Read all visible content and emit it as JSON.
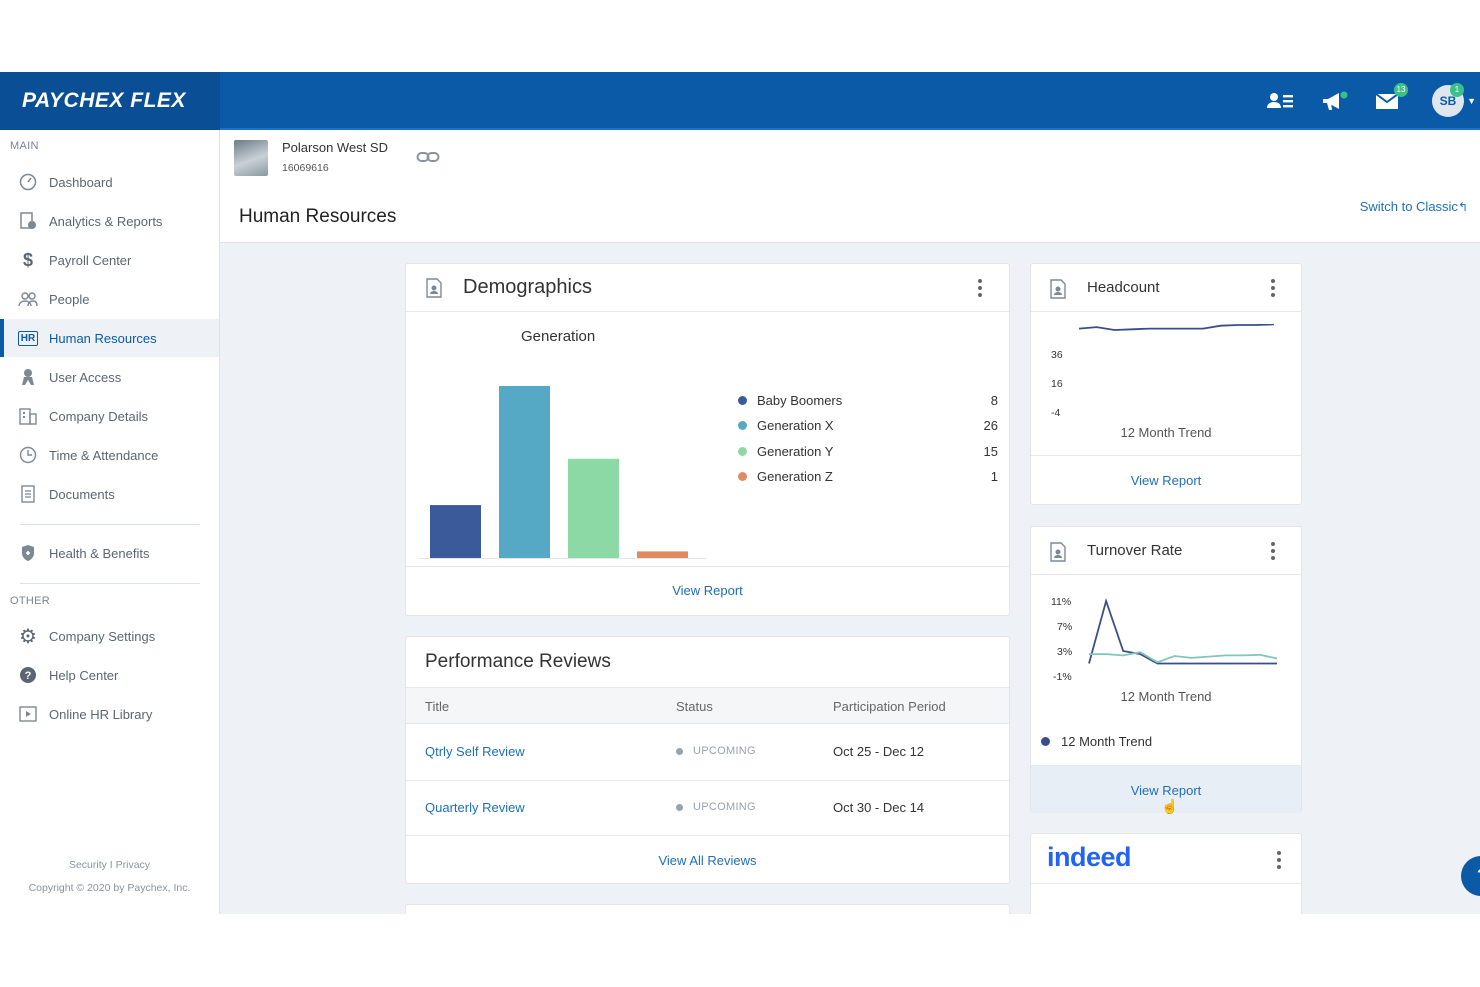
{
  "brand": {
    "logo_text": "PAYCHEX FLEX",
    "primary_color": "#0a5aa8"
  },
  "topbar": {
    "messages_badge": "13",
    "avatar_initials": "SB",
    "avatar_badge": "1"
  },
  "sidebar": {
    "main_label": "MAIN",
    "items": [
      {
        "label": "Dashboard",
        "icon": "dashboard-icon"
      },
      {
        "label": "Analytics & Reports",
        "icon": "analytics-icon"
      },
      {
        "label": "Payroll Center",
        "icon": "dollar-icon"
      },
      {
        "label": "People",
        "icon": "people-icon"
      },
      {
        "label": "Human Resources",
        "icon": "hr-icon",
        "active": true
      },
      {
        "label": "User Access",
        "icon": "user-access-icon"
      },
      {
        "label": "Company Details",
        "icon": "building-icon"
      },
      {
        "label": "Time & Attendance",
        "icon": "clock-icon"
      },
      {
        "label": "Documents",
        "icon": "document-icon"
      },
      {
        "label": "Health & Benefits",
        "icon": "shield-icon"
      }
    ],
    "other_label": "OTHER",
    "other_items": [
      {
        "label": "Company Settings",
        "icon": "gear-icon"
      },
      {
        "label": "Help Center",
        "icon": "help-icon"
      },
      {
        "label": "Online HR Library",
        "icon": "play-icon"
      }
    ],
    "footer_links": "Security I Privacy",
    "copyright": "Copyright © 2020 by Paychex, Inc."
  },
  "header": {
    "company_name": "Polarson West SD",
    "company_id": "16069616",
    "page_title": "Human Resources",
    "switch_label": "Switch to Classic"
  },
  "demographics": {
    "title": "Demographics",
    "view_report": "View Report",
    "chart_data": {
      "type": "bar",
      "title": "Generation",
      "categories": [
        "Baby Boomers",
        "Generation X",
        "Generation Y",
        "Generation Z"
      ],
      "values": [
        8,
        26,
        15,
        1
      ],
      "colors": [
        "#3a5a9a",
        "#56a9c4",
        "#8dd9a6",
        "#e08a63"
      ]
    }
  },
  "performance": {
    "title": "Performance Reviews",
    "columns": [
      "Title",
      "Status",
      "Participation Period"
    ],
    "rows": [
      {
        "title": "Qtrly Self Review",
        "status": "UPCOMING",
        "period": "Oct 25 - Dec 12"
      },
      {
        "title": "Quarterly Review",
        "status": "UPCOMING",
        "period": "Oct 30 - Dec 14"
      }
    ],
    "view_all": "View All Reviews"
  },
  "headcount": {
    "title": "Headcount",
    "view_report": "View Report",
    "chart_data": {
      "type": "line",
      "xlabel": "12 Month Trend",
      "y_ticks": [
        "36",
        "16",
        "-4"
      ],
      "ylim": [
        -4,
        36
      ],
      "values": [
        48,
        49,
        47,
        47.5,
        48,
        48,
        48,
        48,
        50,
        50.5,
        50.5,
        51
      ]
    }
  },
  "turnover": {
    "title": "Turnover Rate",
    "view_report": "View Report",
    "legend": "12 Month Trend",
    "chart_data": {
      "type": "line",
      "xlabel": "12 Month Trend",
      "y_ticks": [
        "11%",
        "7%",
        "3%",
        "-1%"
      ],
      "ylim": [
        -1,
        11
      ],
      "series": [
        {
          "name": "12 Month Trend",
          "color": "#3a4f8a",
          "values": [
            1,
            11,
            3,
            2.5,
            1,
            1,
            1,
            1,
            1,
            1,
            1,
            1
          ]
        },
        {
          "color": "#7fc7b8",
          "values": [
            2.5,
            2.5,
            2.3,
            2.8,
            1.2,
            2.2,
            1.9,
            2.1,
            2.3,
            2.3,
            2.4,
            1.8
          ]
        }
      ]
    }
  },
  "indeed": {
    "logo_text": "indeed"
  }
}
